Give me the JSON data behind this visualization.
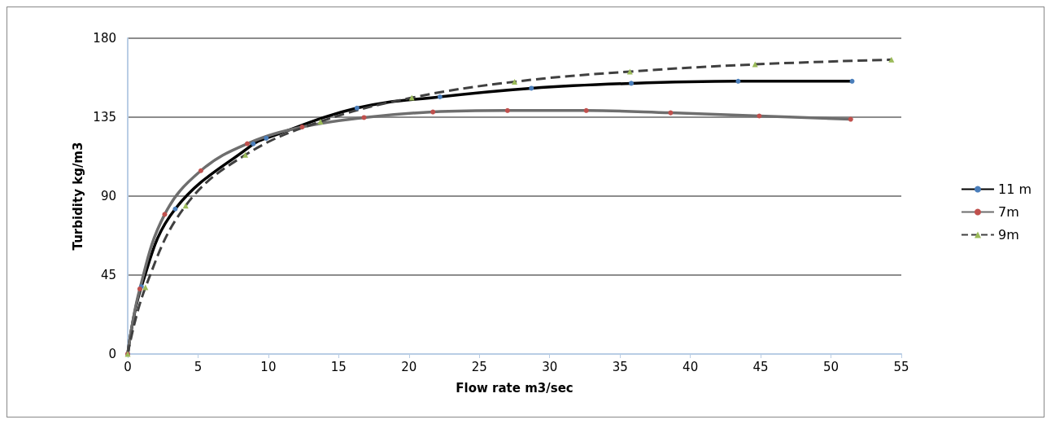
{
  "chart_data": {
    "type": "line",
    "xlabel": "Flow rate m3/sec",
    "ylabel": "Turbidity kg/m3",
    "xlim": [
      0,
      55
    ],
    "xticks": [
      0,
      5,
      10,
      15,
      20,
      25,
      30,
      35,
      40,
      45,
      50,
      55
    ],
    "ylim": [
      0,
      180
    ],
    "yticks": [
      0,
      45,
      90,
      135,
      180
    ],
    "grid": "y",
    "legend": "right",
    "marker": "circle",
    "series": [
      {
        "name": "11 m",
        "color": "#000000",
        "colors": [
          "#4a7ebb",
          "#4a7ebb",
          "#4a7ebb",
          "#4a7ebb",
          "#4a7ebb",
          "#4a7ebb",
          "#4a7ebb",
          "#4a7ebb",
          "#4a7ebb",
          "#4a7ebb",
          "#4a7ebb"
        ],
        "line_style": "solid",
        "x": [
          0,
          0.97,
          3.38,
          8.93,
          9.85,
          16.3,
          22.2,
          28.7,
          35.8,
          43.4,
          51.5
        ],
        "values": [
          0,
          38.4,
          82.7,
          119.8,
          123,
          140.2,
          146.6,
          151.5,
          154.3,
          155.5,
          155.5
        ]
      },
      {
        "name": "7m",
        "color": "#6e6e6e",
        "colors": [
          "#c0504d",
          "#c0504d",
          "#c0504d",
          "#c0504d",
          "#c0504d",
          "#c0504d",
          "#c0504d",
          "#c0504d",
          "#c0504d",
          "#c0504d",
          "#c0504d",
          "#c0504d",
          "#c0504d"
        ],
        "line_style": "solid",
        "x": [
          0,
          0.86,
          2.63,
          5.2,
          8.5,
          12.4,
          16.8,
          21.7,
          27.0,
          32.6,
          38.6,
          44.9,
          51.4
        ],
        "values": [
          0,
          37.1,
          79.6,
          104.5,
          119.9,
          129.4,
          134.8,
          138,
          138.8,
          138.8,
          137.5,
          135.7,
          133.8
        ]
      },
      {
        "name": "9m",
        "color": "#404040",
        "colors": [
          "#9bbb59",
          "#9bbb59",
          "#9bbb59",
          "#9bbb59",
          "#9bbb59",
          "#9bbb59",
          "#9bbb59",
          "#9bbb59",
          "#9bbb59",
          "#9bbb59"
        ],
        "line_style": "dashed",
        "marker": "triangle",
        "x": [
          0,
          1.26,
          4.12,
          8.36,
          13.7,
          20.2,
          27.5,
          35.7,
          44.6,
          54.3
        ],
        "values": [
          0,
          38,
          84.6,
          113.5,
          132.5,
          146.1,
          155.2,
          161,
          165.1,
          167.8
        ]
      }
    ]
  }
}
